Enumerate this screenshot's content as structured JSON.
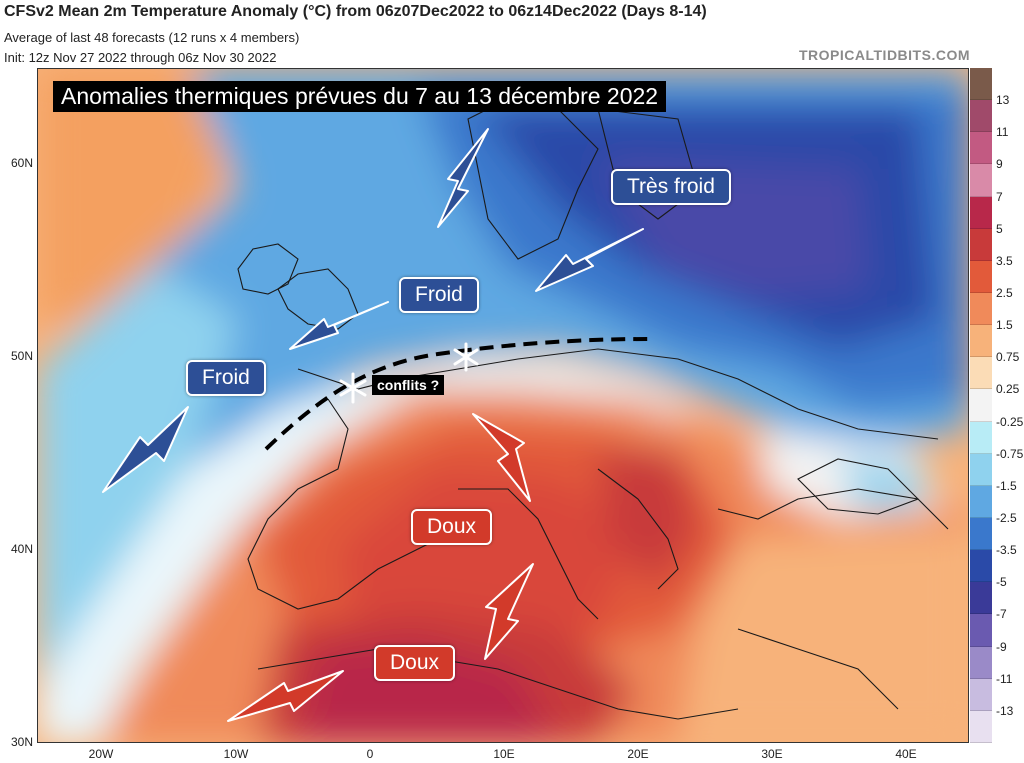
{
  "header": {
    "title": "CFSv2 Mean 2m Temperature Anomaly (°C) from 06z07Dec2022 to 06z14Dec2022 (Days 8-14)",
    "subtitle_1": "Average of last 48 forecasts (12 runs x 4 members)",
    "subtitle_2": "Init: 12z Nov 27 2022 through 06z Nov 30 2022",
    "brand": "TROPICALTIDBITS.COM"
  },
  "annotations": {
    "banner": "Anomalies thermiques prévues du 7 au 13 décembre 2022",
    "tres_froid": "Très froid",
    "froid_north": "Froid",
    "froid_west": "Froid",
    "doux_italy": "Doux",
    "doux_africa": "Doux",
    "conflits": "conflits ?"
  },
  "axes": {
    "lat_labels": [
      "60N",
      "50N",
      "40N",
      "30N"
    ],
    "lon_labels": [
      "20W",
      "10W",
      "0",
      "10E",
      "20E",
      "30E",
      "40E"
    ]
  },
  "colorbar": {
    "labels": [
      "13",
      "11",
      "9",
      "7",
      "5",
      "3.5",
      "2.5",
      "1.5",
      "0.75",
      "0.25",
      "-0.25",
      "-0.75",
      "-1.5",
      "-2.5",
      "-3.5",
      "-5",
      "-7",
      "-9",
      "-11",
      "-13"
    ],
    "colors": [
      "#7a5a4a",
      "#a04a6a",
      "#c25a82",
      "#d98aa8",
      "#b8284a",
      "#c83a3a",
      "#e25a3a",
      "#f08a5a",
      "#f7b27a",
      "#fbdcb6",
      "#f3f3f3",
      "#b8ecf6",
      "#8fd2ee",
      "#5fa8e2",
      "#3a78cc",
      "#2a4aa8",
      "#3a3a98",
      "#6a5ab0",
      "#9a8ac8",
      "#c8bce0",
      "#e8e0f0"
    ]
  },
  "colors": {
    "cold_label": "#2d4f96",
    "warm_label": "#d23a2a"
  }
}
